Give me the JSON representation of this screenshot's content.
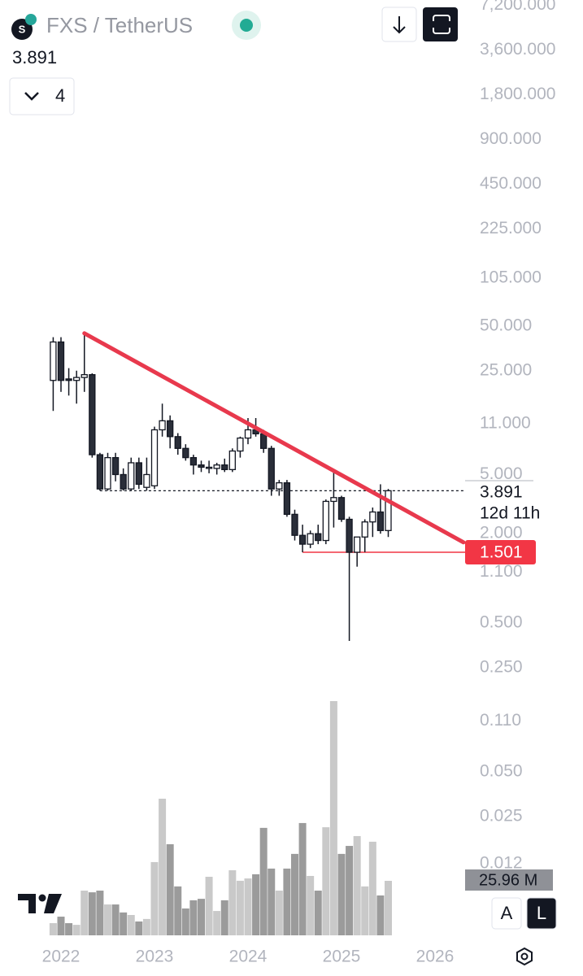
{
  "chart_data": {
    "type": "candlestick",
    "title": "FXS / TetherUS",
    "interval": "4",
    "scale_buttons": [
      "A",
      "L"
    ],
    "log_scale": true,
    "ylim": [
      0.0045,
      7800
    ],
    "yticks": [
      {
        "value": 7200,
        "label": "7,200.000"
      },
      {
        "value": 3600,
        "label": "3,600.000"
      },
      {
        "value": 1800,
        "label": "1,800.000"
      },
      {
        "value": 900,
        "label": "900.000"
      },
      {
        "value": 450,
        "label": "450.000"
      },
      {
        "value": 225,
        "label": "225.000"
      },
      {
        "value": 105,
        "label": "105.000"
      },
      {
        "value": 50,
        "label": "50.000"
      },
      {
        "value": 25,
        "label": "25.000"
      },
      {
        "value": 11,
        "label": "11.000"
      },
      {
        "value": 5,
        "label": "5.000"
      },
      {
        "value": 2,
        "label": "2.000"
      },
      {
        "value": 1.1,
        "label": "1.100"
      },
      {
        "value": 0.5,
        "label": "0.500"
      },
      {
        "value": 0.25,
        "label": "0.250"
      },
      {
        "value": 0.11,
        "label": "0.110"
      },
      {
        "value": 0.05,
        "label": "0.050"
      },
      {
        "value": 0.025,
        "label": "0.025"
      },
      {
        "value": 0.012,
        "label": "0.012"
      }
    ],
    "xticks": [
      2022,
      2023,
      2024,
      2025,
      2026
    ],
    "open": [
      21.5,
      39,
      22,
      21.5,
      22.5,
      23.5,
      6.8,
      4.0,
      6.5,
      5.0,
      4.0,
      6.0,
      4.1,
      4.2,
      10,
      11.5,
      9.0,
      7.5,
      6.5,
      5.8,
      5.5,
      5.5,
      5.8,
      5.4,
      7.2,
      8.8,
      10,
      9.4,
      7.5,
      4.0,
      4.4,
      2.7,
      1.95,
      1.7,
      2.0,
      1.8,
      3.3,
      3.5,
      2.5,
      1.5,
      1.9,
      2.4,
      2.8,
      2.1
    ],
    "high": [
      42,
      42,
      26,
      25,
      45,
      24,
      7,
      7,
      7,
      5.5,
      6.5,
      6.5,
      6.5,
      10.5,
      15,
      12.5,
      9.5,
      8,
      6.8,
      6.2,
      6.2,
      6,
      6.4,
      7.5,
      9,
      12,
      12,
      10,
      7.8,
      4.6,
      4.6,
      2.9,
      2.3,
      2.1,
      2.3,
      3.4,
      5.3,
      3.6,
      2.6,
      1.9,
      2.5,
      3.0,
      4.3,
      4.0
    ],
    "low": [
      13.4,
      18,
      17,
      15,
      18,
      6.5,
      3.9,
      3.9,
      4.5,
      3.9,
      3.9,
      4.0,
      3.9,
      4.0,
      9,
      7.5,
      6.8,
      6.2,
      5.0,
      5.2,
      5.1,
      5.0,
      5.2,
      5.2,
      6.5,
      8.0,
      9,
      7,
      3.6,
      3.6,
      2.6,
      1.8,
      1.5,
      1.6,
      1.7,
      1.7,
      2.2,
      2.4,
      0.38,
      1.2,
      1.5,
      1.9,
      2.0,
      1.9
    ],
    "close": [
      39,
      21.5,
      21.5,
      22.5,
      23.5,
      6.8,
      4.0,
      6.5,
      5.0,
      4.0,
      6.0,
      4.3,
      5.0,
      10.0,
      11.5,
      9.0,
      7.5,
      6.5,
      5.8,
      5.6,
      5.6,
      5.8,
      5.4,
      7.2,
      8.8,
      10.0,
      9.4,
      7.5,
      4.0,
      4.4,
      2.7,
      1.95,
      1.7,
      2.0,
      1.8,
      3.3,
      3.5,
      2.5,
      1.5,
      1.9,
      2.4,
      2.8,
      2.1,
      3.891
    ],
    "up_color": "#ffffff",
    "down_color": "#2a2e39",
    "countdown": "12d 11h",
    "volume": {
      "values": [
        5.8,
        8.9,
        5.8,
        5.0,
        21.3,
        20.5,
        21.3,
        14.7,
        14.7,
        10.9,
        9.7,
        6.6,
        7.8,
        34.9,
        65.1,
        43.4,
        23.3,
        12.8,
        16.7,
        17.4,
        27.9,
        11.6,
        16.7,
        31.0,
        26.0,
        27.1,
        29.1,
        51.2,
        31.8,
        21.3,
        31.8,
        38.8,
        53.5,
        28.3,
        21.3,
        51.5,
        111.6,
        38.8,
        42.6,
        47.3,
        23.3,
        44.6,
        19.0,
        25.96
      ],
      "value_labels": [
        null,
        null,
        null,
        null,
        null,
        null,
        null,
        null,
        null,
        null,
        null,
        null,
        null,
        null,
        null,
        null,
        null,
        null,
        null,
        null,
        null,
        null,
        null,
        null,
        null,
        null,
        null,
        null,
        null,
        null,
        null,
        null,
        null,
        null,
        null,
        null,
        null,
        null,
        null,
        null,
        null,
        null,
        null,
        "25.96 M"
      ],
      "up_color": "#c9c9c9",
      "down_color": "#9b9b9b"
    },
    "trendline": {
      "color": "#e8394d",
      "prices": [
        44.6,
        1.75
      ]
    },
    "horizontal_line": {
      "value": 1.501,
      "color": "#f23645"
    }
  }
}
